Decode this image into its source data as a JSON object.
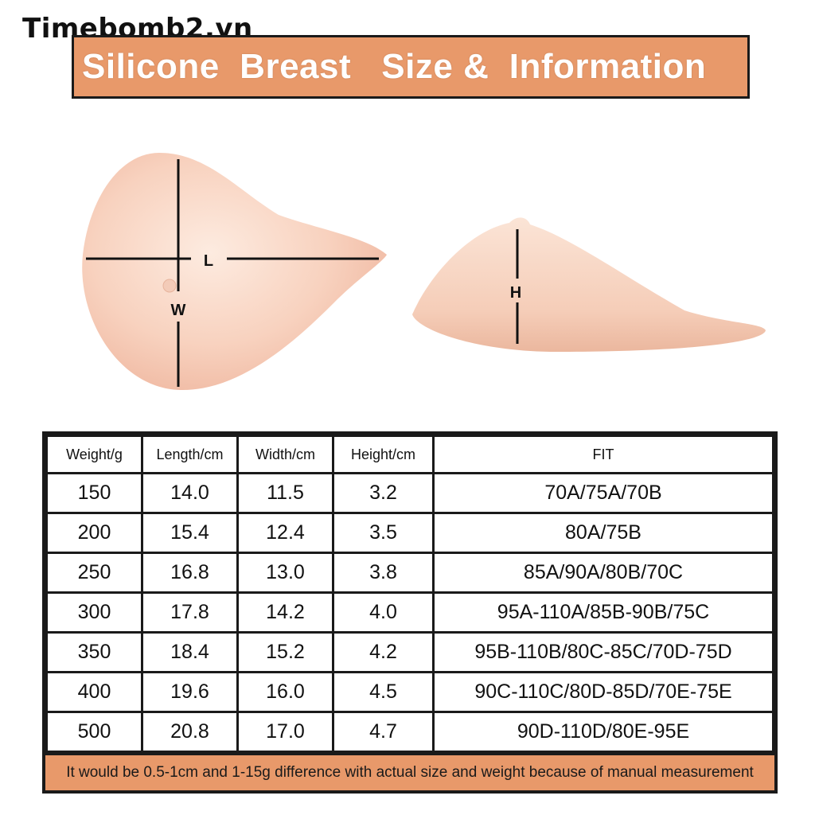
{
  "watermark": "Timebomb2.vn",
  "title": "Silicone  Breast   Size &  Information",
  "diagram": {
    "label_length": "L",
    "label_width": "W",
    "label_height": "H"
  },
  "table": {
    "headers": [
      "Weight/g",
      "Length/cm",
      "Width/cm",
      "Height/cm",
      "FIT"
    ],
    "rows": [
      [
        "150",
        "14.0",
        "11.5",
        "3.2",
        "70A/75A/70B"
      ],
      [
        "200",
        "15.4",
        "12.4",
        "3.5",
        "80A/75B"
      ],
      [
        "250",
        "16.8",
        "13.0",
        "3.8",
        "85A/90A/80B/70C"
      ],
      [
        "300",
        "17.8",
        "14.2",
        "4.0",
        "95A-110A/85B-90B/75C"
      ],
      [
        "350",
        "18.4",
        "15.2",
        "4.2",
        "95B-110B/80C-85C/70D-75D"
      ],
      [
        "400",
        "19.6",
        "16.0",
        "4.5",
        "90C-110C/80D-85D/70E-75E"
      ],
      [
        "500",
        "20.8",
        "17.0",
        "4.7",
        "90D-110D/80E-95E"
      ]
    ],
    "note": "It would be 0.5-1cm and 1-15g difference with actual size and weight because of manual measurement"
  },
  "colors": {
    "accent": "#e8996a",
    "skin_light": "#fbe4d6",
    "skin_dark": "#f0b9a0"
  }
}
